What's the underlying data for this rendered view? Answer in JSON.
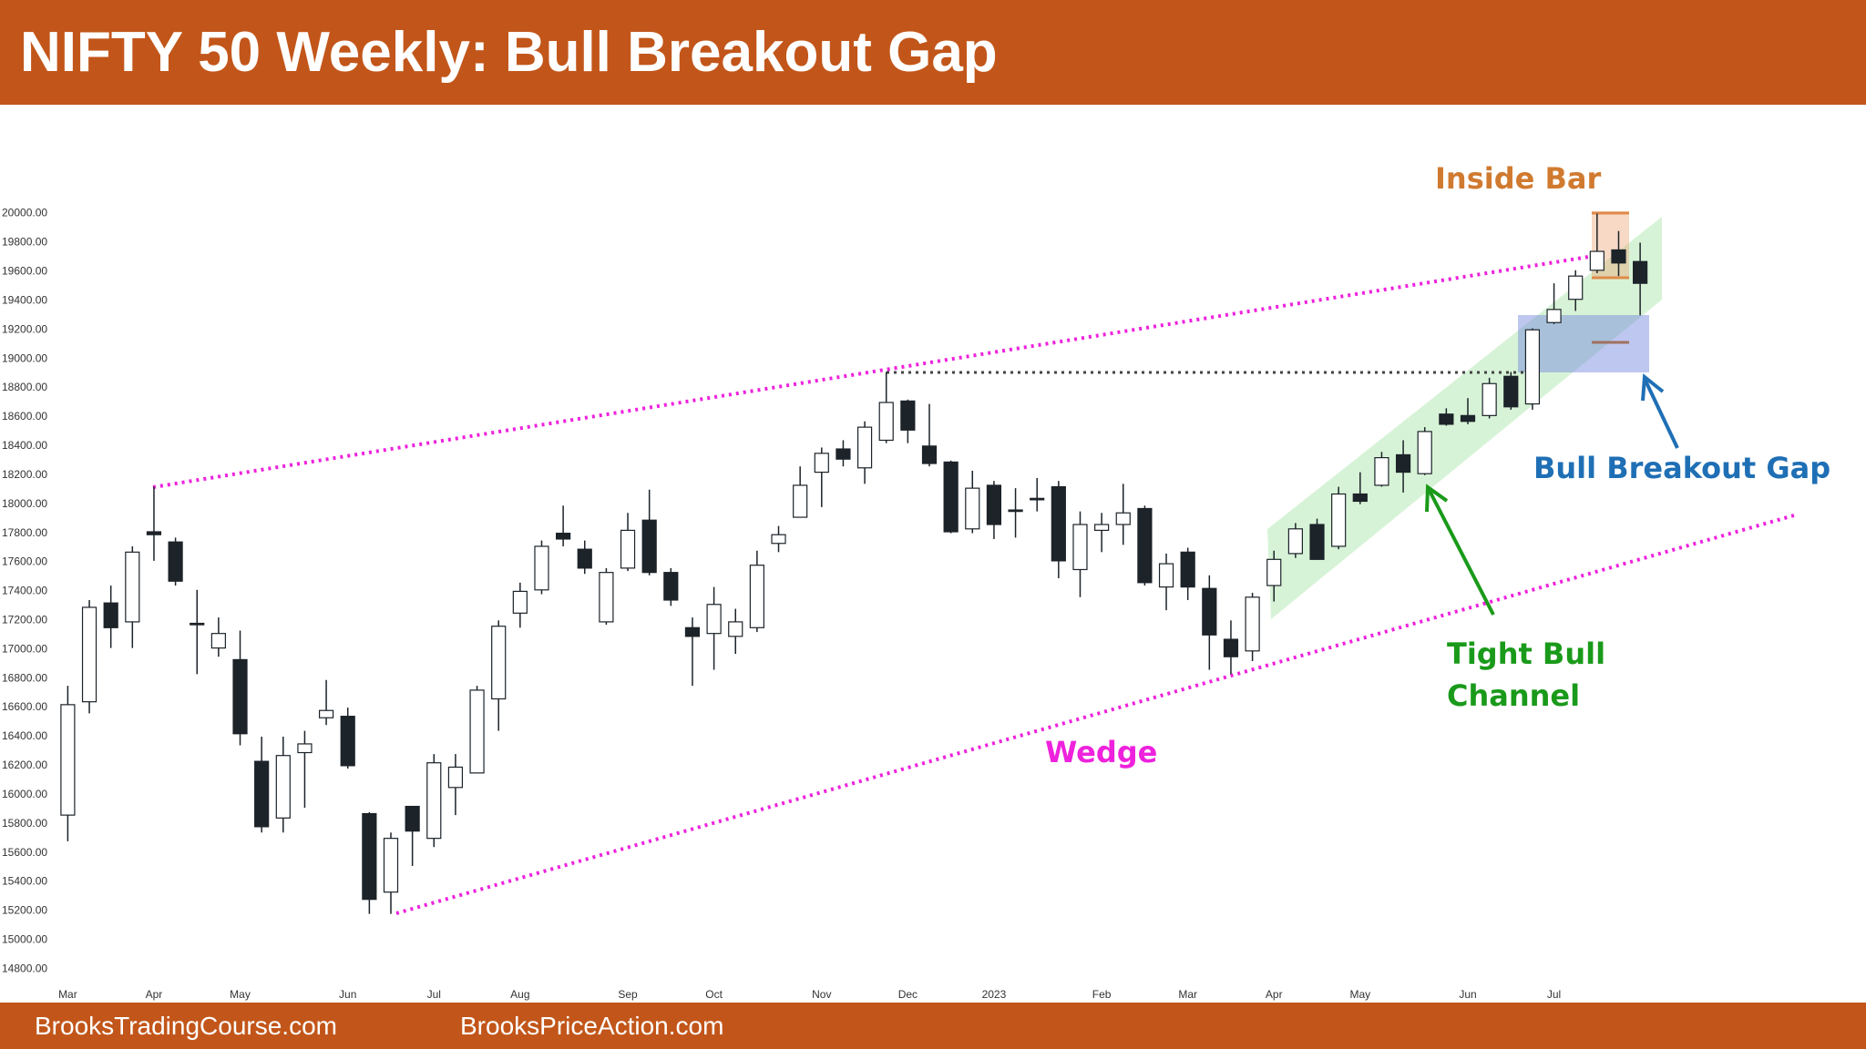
{
  "header": {
    "title": "NIFTY 50 Weekly: Bull Breakout Gap"
  },
  "footer": {
    "left": "BrooksTradingCourse.com",
    "right": "BrooksPriceAction.com"
  },
  "chart_data": {
    "type": "candlestick",
    "categories": [
      "Mar",
      null,
      null,
      null,
      "Apr",
      null,
      null,
      null,
      "May",
      null,
      null,
      null,
      null,
      "Jun",
      null,
      null,
      null,
      "Jul",
      null,
      null,
      null,
      "Aug",
      null,
      null,
      null,
      null,
      "Sep",
      null,
      null,
      null,
      "Oct",
      null,
      null,
      null,
      null,
      "Nov",
      null,
      null,
      null,
      "Dec",
      null,
      null,
      null,
      "2023",
      null,
      null,
      null,
      null,
      "Feb",
      null,
      null,
      null,
      "Mar",
      null,
      null,
      null,
      "Apr",
      null,
      null,
      null,
      "May",
      null,
      null,
      null,
      null,
      "Jun",
      null,
      null,
      null,
      "Jul",
      null,
      null,
      null,
      null
    ],
    "open": [
      15860,
      16640,
      17320,
      17190,
      17810,
      17740,
      17180,
      17010,
      16930,
      16230,
      15840,
      16290,
      16530,
      16540,
      15870,
      15330,
      15920,
      15700,
      16050,
      16150,
      16660,
      17250,
      17410,
      17800,
      17690,
      17190,
      17560,
      17890,
      17530,
      17150,
      17110,
      17090,
      17150,
      17730,
      17910,
      18220,
      18380,
      18250,
      18440,
      18710,
      18400,
      18290,
      17830,
      18130,
      17960,
      18040,
      18120,
      17550,
      17820,
      17860,
      17970,
      17430,
      17670,
      17420,
      17070,
      16990,
      17440,
      17660,
      17860,
      17710,
      18070,
      18130,
      18340,
      18210,
      18620,
      18610,
      18610,
      18880,
      18690,
      19250,
      19410,
      19610,
      19750,
      19670
    ],
    "high": [
      16750,
      17340,
      17440,
      17710,
      18120,
      17770,
      17410,
      17220,
      17130,
      16400,
      16400,
      16440,
      16790,
      16600,
      15880,
      15740,
      15920,
      16280,
      16280,
      16750,
      17200,
      17460,
      17750,
      17990,
      17750,
      17560,
      17940,
      18100,
      17560,
      17220,
      17430,
      17280,
      17680,
      17850,
      18260,
      18390,
      18440,
      18570,
      18910,
      18720,
      18690,
      18300,
      18230,
      18160,
      18110,
      18180,
      18160,
      17950,
      17940,
      18140,
      17990,
      17660,
      17700,
      17510,
      17200,
      17390,
      17680,
      17870,
      17900,
      18120,
      18220,
      18360,
      18440,
      18530,
      18660,
      18730,
      18870,
      18910,
      19210,
      19520,
      19610,
      20000,
      19880,
      19800
    ],
    "low": [
      15680,
      16560,
      17010,
      17010,
      17610,
      17440,
      16830,
      16950,
      16340,
      15740,
      15740,
      15910,
      16480,
      16180,
      15180,
      15180,
      15510,
      15640,
      15860,
      16150,
      16440,
      17150,
      17380,
      17710,
      17520,
      17170,
      17540,
      17510,
      17300,
      16750,
      16860,
      16970,
      17120,
      17670,
      17910,
      17980,
      18260,
      18140,
      18420,
      18420,
      18260,
      17800,
      17800,
      17760,
      17770,
      17950,
      17490,
      17360,
      17670,
      17720,
      17440,
      17270,
      17340,
      16860,
      16830,
      16920,
      17330,
      17630,
      17620,
      17690,
      18000,
      18120,
      18080,
      18200,
      18540,
      18550,
      18590,
      18650,
      18650,
      19240,
      19330,
      19590,
      19570,
      19300
    ],
    "close": [
      16620,
      17290,
      17150,
      17670,
      17790,
      17470,
      17170,
      17110,
      16420,
      15780,
      16270,
      16350,
      16580,
      16200,
      15280,
      15700,
      15750,
      16220,
      16190,
      16720,
      17160,
      17400,
      17710,
      17760,
      17560,
      17530,
      17820,
      17530,
      17340,
      17090,
      17310,
      17190,
      17580,
      17790,
      18130,
      18350,
      18310,
      18530,
      18700,
      18510,
      18280,
      17810,
      18110,
      17860,
      17950,
      18030,
      17610,
      17860,
      17860,
      17940,
      17460,
      17590,
      17430,
      17100,
      16950,
      17360,
      17620,
      17830,
      17620,
      18070,
      18020,
      18320,
      18220,
      18500,
      18550,
      18570,
      18830,
      18670,
      19200,
      19340,
      19570,
      19740,
      19660,
      19520
    ],
    "ylim": [
      14670,
      20530
    ],
    "yticks": [
      {
        "value": 14800,
        "label": "14800.00"
      },
      {
        "value": 15000,
        "label": "15000.00"
      },
      {
        "value": 15200,
        "label": "15200.00"
      },
      {
        "value": 15400,
        "label": "15400.00"
      },
      {
        "value": 15600,
        "label": "15600.00"
      },
      {
        "value": 15800,
        "label": "15800.00"
      },
      {
        "value": 16000,
        "label": "16000.00"
      },
      {
        "value": 16200,
        "label": "16200.00"
      },
      {
        "value": 16400,
        "label": "16400.00"
      },
      {
        "value": 16600,
        "label": "16600.00"
      },
      {
        "value": 16800,
        "label": "16800.00"
      },
      {
        "value": 17000,
        "label": "17000.00"
      },
      {
        "value": 17200,
        "label": "17200.00"
      },
      {
        "value": 17400,
        "label": "17400.00"
      },
      {
        "value": 17600,
        "label": "17600.00"
      },
      {
        "value": 17800,
        "label": "17800.00"
      },
      {
        "value": 18000,
        "label": "18000.00"
      },
      {
        "value": 18200,
        "label": "18200.00"
      },
      {
        "value": 18400,
        "label": "18400.00"
      },
      {
        "value": 18600,
        "label": "18600.00"
      },
      {
        "value": 18800,
        "label": "18800.00"
      },
      {
        "value": 19000,
        "label": "19000.00"
      },
      {
        "value": 19200,
        "label": "19200.00"
      },
      {
        "value": 19400,
        "label": "19400.00"
      },
      {
        "value": 19600,
        "label": "19600.00"
      },
      {
        "value": 19800,
        "label": "19800.00"
      },
      {
        "value": 20000,
        "label": "20000.00"
      }
    ],
    "up_color": "#ffffff",
    "down_color": "#1c2329",
    "edge_color": "#1c2329",
    "annotations": [
      "Inside Bar",
      "Bull Breakout Gap",
      "Tight Bull Channel",
      "Wedge"
    ]
  }
}
